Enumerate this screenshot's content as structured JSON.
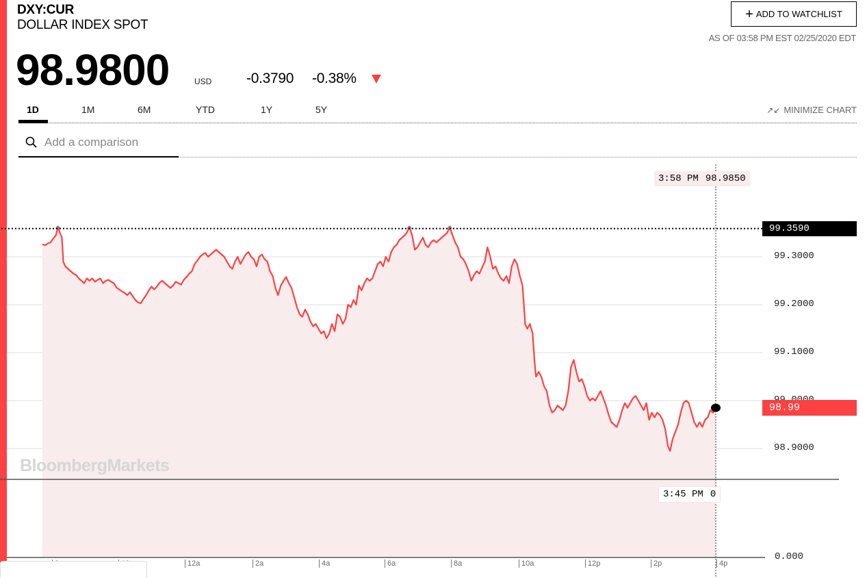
{
  "header": {
    "ticker": "DXY:CUR",
    "name": "DOLLAR INDEX SPOT",
    "price": "98.9800",
    "currency": "USD",
    "change": "-0.3790",
    "change_pct": "-0.38%",
    "direction": "down",
    "watchlist_label": "ADD TO WATCHLIST",
    "as_of": "AS OF 03:58 PM EST 02/25/2020 EDT"
  },
  "tabs": [
    {
      "label": "1D",
      "active": true
    },
    {
      "label": "1M",
      "active": false
    },
    {
      "label": "6M",
      "active": false
    },
    {
      "label": "YTD",
      "active": false
    },
    {
      "label": "1Y",
      "active": false
    },
    {
      "label": "5Y",
      "active": false
    }
  ],
  "minimize_label": "MINIMIZE CHART",
  "comparison": {
    "placeholder": "Add a comparison",
    "value": ""
  },
  "colors": {
    "accent": "#fb4142",
    "line": "#fb4142",
    "area": "#f8eced",
    "peak": "#4a9bd1",
    "high_label_bg": "#000000",
    "current_label_bg": "#fb4142"
  },
  "chart_data": {
    "type": "line",
    "title": "DXY:CUR 1D",
    "xlabel": "",
    "ylabel": "",
    "x_ticks": [
      "8",
      "10",
      "12a",
      "2a",
      "4a",
      "6a",
      "8a",
      "10a",
      "12p",
      "2p",
      "4p"
    ],
    "y_ticks": [
      "99.3000",
      "99.2000",
      "99.1000",
      "99.0000",
      "98.9000"
    ],
    "volume_axis_label": "0.000",
    "ylim": [
      98.87,
      99.39
    ],
    "high_line": {
      "value": 99.359,
      "label": "99.3590"
    },
    "current": {
      "value": 98.99,
      "label": "98.99"
    },
    "crosshair": {
      "time": "3:58 PM",
      "value": "98.9850"
    },
    "volume_crosshair": {
      "time": "3:45 PM",
      "value": "0"
    },
    "watermark": "BloombergMarkets",
    "grid": true,
    "series": [
      {
        "name": "DXY",
        "points": [
          [
            0.0,
            99.326
          ],
          [
            0.004,
            99.324
          ],
          [
            0.008,
            99.328
          ],
          [
            0.012,
            99.33
          ],
          [
            0.016,
            99.338
          ],
          [
            0.02,
            99.345
          ],
          [
            0.023,
            99.362
          ],
          [
            0.026,
            99.35
          ],
          [
            0.029,
            99.34
          ],
          [
            0.031,
            99.29
          ],
          [
            0.034,
            99.28
          ],
          [
            0.038,
            99.275
          ],
          [
            0.042,
            99.27
          ],
          [
            0.046,
            99.265
          ],
          [
            0.05,
            99.262
          ],
          [
            0.054,
            99.255
          ],
          [
            0.058,
            99.25
          ],
          [
            0.062,
            99.245
          ],
          [
            0.066,
            99.255
          ],
          [
            0.07,
            99.25
          ],
          [
            0.074,
            99.255
          ],
          [
            0.078,
            99.248
          ],
          [
            0.082,
            99.252
          ],
          [
            0.086,
            99.255
          ],
          [
            0.09,
            99.245
          ],
          [
            0.094,
            99.25
          ],
          [
            0.098,
            99.252
          ],
          [
            0.102,
            99.248
          ],
          [
            0.106,
            99.245
          ],
          [
            0.11,
            99.236
          ],
          [
            0.114,
            99.232
          ],
          [
            0.118,
            99.228
          ],
          [
            0.122,
            99.225
          ],
          [
            0.126,
            99.22
          ],
          [
            0.13,
            99.226
          ],
          [
            0.134,
            99.218
          ],
          [
            0.138,
            99.21
          ],
          [
            0.142,
            99.205
          ],
          [
            0.146,
            99.203
          ],
          [
            0.15,
            99.212
          ],
          [
            0.154,
            99.22
          ],
          [
            0.158,
            99.23
          ],
          [
            0.162,
            99.238
          ],
          [
            0.166,
            99.232
          ],
          [
            0.17,
            99.238
          ],
          [
            0.174,
            99.246
          ],
          [
            0.178,
            99.25
          ],
          [
            0.182,
            99.245
          ],
          [
            0.186,
            99.24
          ],
          [
            0.19,
            99.235
          ],
          [
            0.194,
            99.24
          ],
          [
            0.198,
            99.248
          ],
          [
            0.202,
            99.245
          ],
          [
            0.206,
            99.242
          ],
          [
            0.21,
            99.252
          ],
          [
            0.214,
            99.258
          ],
          [
            0.218,
            99.265
          ],
          [
            0.222,
            99.27
          ],
          [
            0.226,
            99.285
          ],
          [
            0.23,
            99.292
          ],
          [
            0.234,
            99.3
          ],
          [
            0.238,
            99.305
          ],
          [
            0.242,
            99.308
          ],
          [
            0.246,
            99.3
          ],
          [
            0.25,
            99.305
          ],
          [
            0.254,
            99.31
          ],
          [
            0.258,
            99.315
          ],
          [
            0.262,
            99.31
          ],
          [
            0.266,
            99.305
          ],
          [
            0.27,
            99.3
          ],
          [
            0.274,
            99.29
          ],
          [
            0.278,
            99.28
          ],
          [
            0.282,
            99.275
          ],
          [
            0.286,
            99.29
          ],
          [
            0.29,
            99.3
          ],
          [
            0.294,
            99.285
          ],
          [
            0.298,
            99.295
          ],
          [
            0.302,
            99.305
          ],
          [
            0.306,
            99.31
          ],
          [
            0.31,
            99.3
          ],
          [
            0.314,
            99.295
          ],
          [
            0.318,
            99.28
          ],
          [
            0.322,
            99.3
          ],
          [
            0.326,
            99.305
          ],
          [
            0.33,
            99.295
          ],
          [
            0.334,
            99.29
          ],
          [
            0.338,
            99.27
          ],
          [
            0.342,
            99.26
          ],
          [
            0.346,
            99.235
          ],
          [
            0.35,
            99.22
          ],
          [
            0.354,
            99.24
          ],
          [
            0.358,
            99.25
          ],
          [
            0.362,
            99.258
          ],
          [
            0.366,
            99.245
          ],
          [
            0.37,
            99.235
          ],
          [
            0.374,
            99.215
          ],
          [
            0.378,
            99.195
          ],
          [
            0.382,
            99.18
          ],
          [
            0.386,
            99.175
          ],
          [
            0.39,
            99.19
          ],
          [
            0.394,
            99.18
          ],
          [
            0.398,
            99.165
          ],
          [
            0.402,
            99.155
          ],
          [
            0.406,
            99.16
          ],
          [
            0.41,
            99.15
          ],
          [
            0.414,
            99.14
          ],
          [
            0.418,
            99.145
          ],
          [
            0.422,
            99.13
          ],
          [
            0.426,
            99.14
          ],
          [
            0.43,
            99.16
          ],
          [
            0.434,
            99.145
          ],
          [
            0.438,
            99.18
          ],
          [
            0.442,
            99.175
          ],
          [
            0.446,
            99.16
          ],
          [
            0.45,
            99.17
          ],
          [
            0.454,
            99.2
          ],
          [
            0.458,
            99.195
          ],
          [
            0.462,
            99.21
          ],
          [
            0.466,
            99.2
          ],
          [
            0.47,
            99.24
          ],
          [
            0.474,
            99.23
          ],
          [
            0.478,
            99.245
          ],
          [
            0.482,
            99.255
          ],
          [
            0.486,
            99.25
          ],
          [
            0.49,
            99.255
          ],
          [
            0.494,
            99.27
          ],
          [
            0.498,
            99.285
          ],
          [
            0.502,
            99.29
          ],
          [
            0.506,
            99.28
          ],
          [
            0.51,
            99.3
          ],
          [
            0.514,
            99.29
          ],
          [
            0.518,
            99.31
          ],
          [
            0.522,
            99.32
          ],
          [
            0.526,
            99.325
          ],
          [
            0.53,
            99.335
          ],
          [
            0.534,
            99.34
          ],
          [
            0.538,
            99.345
          ],
          [
            0.541,
            99.35
          ],
          [
            0.545,
            99.362
          ],
          [
            0.549,
            99.345
          ],
          [
            0.553,
            99.315
          ],
          [
            0.557,
            99.32
          ],
          [
            0.561,
            99.33
          ],
          [
            0.565,
            99.34
          ],
          [
            0.569,
            99.325
          ],
          [
            0.573,
            99.32
          ],
          [
            0.577,
            99.33
          ],
          [
            0.581,
            99.335
          ],
          [
            0.585,
            99.33
          ],
          [
            0.589,
            99.335
          ],
          [
            0.593,
            99.34
          ],
          [
            0.597,
            99.345
          ],
          [
            0.601,
            99.35
          ],
          [
            0.605,
            99.362
          ],
          [
            0.609,
            99.345
          ],
          [
            0.613,
            99.33
          ],
          [
            0.617,
            99.32
          ],
          [
            0.621,
            99.3
          ],
          [
            0.625,
            99.295
          ],
          [
            0.629,
            99.285
          ],
          [
            0.633,
            99.27
          ],
          [
            0.637,
            99.25
          ],
          [
            0.641,
            99.262
          ],
          [
            0.645,
            99.27
          ],
          [
            0.649,
            99.265
          ],
          [
            0.653,
            99.278
          ],
          [
            0.657,
            99.29
          ],
          [
            0.661,
            99.32
          ],
          [
            0.665,
            99.3
          ],
          [
            0.669,
            99.275
          ],
          [
            0.673,
            99.28
          ],
          [
            0.677,
            99.265
          ],
          [
            0.681,
            99.255
          ],
          [
            0.685,
            99.25
          ],
          [
            0.689,
            99.26
          ],
          [
            0.693,
            99.245
          ],
          [
            0.697,
            99.28
          ],
          [
            0.701,
            99.295
          ],
          [
            0.705,
            99.285
          ],
          [
            0.709,
            99.26
          ],
          [
            0.713,
            99.24
          ],
          [
            0.715,
            99.2
          ],
          [
            0.717,
            99.16
          ],
          [
            0.72,
            99.15
          ],
          [
            0.724,
            99.16
          ],
          [
            0.728,
            99.14
          ],
          [
            0.731,
            99.08
          ],
          [
            0.733,
            99.05
          ],
          [
            0.737,
            99.06
          ],
          [
            0.741,
            99.05
          ],
          [
            0.745,
            99.03
          ],
          [
            0.749,
            99.02
          ],
          [
            0.753,
            98.99
          ],
          [
            0.757,
            98.975
          ],
          [
            0.761,
            98.98
          ],
          [
            0.765,
            98.99
          ],
          [
            0.769,
            98.985
          ],
          [
            0.773,
            98.98
          ],
          [
            0.777,
            98.99
          ],
          [
            0.781,
            99.02
          ],
          [
            0.785,
            99.07
          ],
          [
            0.789,
            99.085
          ],
          [
            0.793,
            99.06
          ],
          [
            0.797,
            99.04
          ],
          [
            0.801,
            99.045
          ],
          [
            0.805,
            99.03
          ],
          [
            0.809,
            99.01
          ],
          [
            0.813,
            99.0
          ],
          [
            0.817,
            99.005
          ],
          [
            0.821,
            99.0
          ],
          [
            0.825,
            99.01
          ],
          [
            0.829,
            99.02
          ],
          [
            0.833,
            99.005
          ],
          [
            0.837,
            98.99
          ],
          [
            0.841,
            98.97
          ],
          [
            0.845,
            98.955
          ],
          [
            0.849,
            98.95
          ],
          [
            0.853,
            98.945
          ],
          [
            0.857,
            98.96
          ],
          [
            0.861,
            98.98
          ],
          [
            0.865,
            98.995
          ],
          [
            0.869,
            98.985
          ],
          [
            0.873,
            98.995
          ],
          [
            0.877,
            99.005
          ],
          [
            0.881,
            99.01
          ],
          [
            0.885,
            99.0
          ],
          [
            0.889,
            98.99
          ],
          [
            0.893,
            98.98
          ],
          [
            0.897,
            98.995
          ],
          [
            0.901,
            98.96
          ],
          [
            0.905,
            98.975
          ],
          [
            0.909,
            98.965
          ],
          [
            0.913,
            98.975
          ],
          [
            0.917,
            98.97
          ],
          [
            0.921,
            98.96
          ],
          [
            0.925,
            98.94
          ],
          [
            0.929,
            98.905
          ],
          [
            0.932,
            98.895
          ],
          [
            0.936,
            98.92
          ],
          [
            0.94,
            98.935
          ],
          [
            0.944,
            98.95
          ],
          [
            0.948,
            98.975
          ],
          [
            0.952,
            98.995
          ],
          [
            0.956,
            99.0
          ],
          [
            0.96,
            98.995
          ],
          [
            0.964,
            98.975
          ],
          [
            0.968,
            98.955
          ],
          [
            0.972,
            98.945
          ],
          [
            0.976,
            98.955
          ],
          [
            0.98,
            98.945
          ],
          [
            0.984,
            98.96
          ],
          [
            0.988,
            98.965
          ],
          [
            0.992,
            98.98
          ],
          [
            0.996,
            98.975
          ],
          [
            1.0,
            98.985
          ]
        ]
      }
    ]
  }
}
